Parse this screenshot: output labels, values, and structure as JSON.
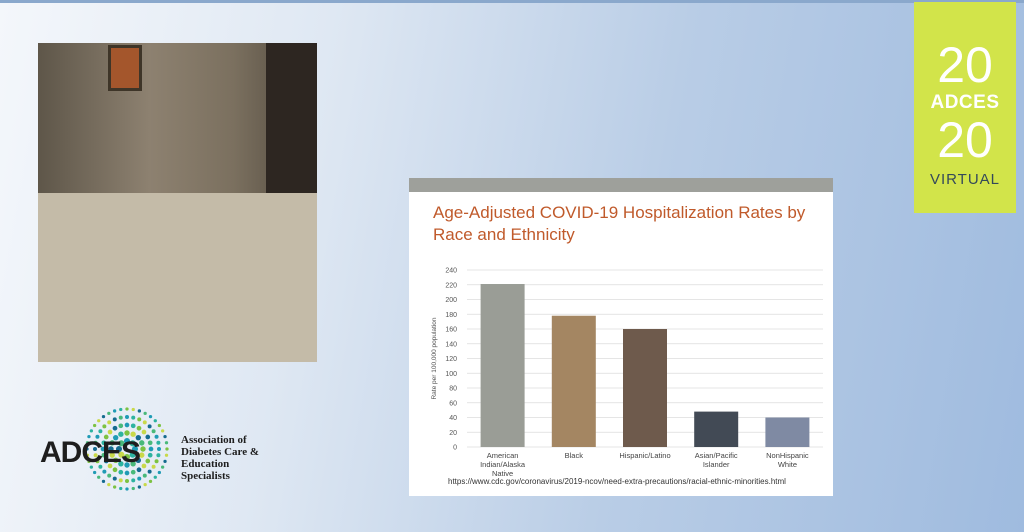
{
  "badge": {
    "top_number": "20",
    "org": "ADCES",
    "bottom_number": "20",
    "subtitle": "VIRTUAL"
  },
  "logo": {
    "wordmark": "ADCES",
    "org_line1": "Association of",
    "org_line2": "Diabetes Care & Education",
    "org_line3": "Specialists"
  },
  "slide": {
    "title": "Age-Adjusted COVID-19 Hospitalization Rates by Race and Ethnicity",
    "source": "https://www.cdc.gov/coronavirus/2019-ncov/need-extra-precautions/racial-ethnic-minorities.html"
  },
  "chart_data": {
    "type": "bar",
    "title": "Age-Adjusted COVID-19 Hospitalization Rates by Race and Ethnicity",
    "ylabel": "Rate per 100,000 population",
    "xlabel": "",
    "ylim": [
      0,
      240
    ],
    "yticks": [
      0,
      20,
      40,
      60,
      80,
      100,
      120,
      140,
      160,
      180,
      200,
      220,
      240
    ],
    "grid": true,
    "categories": [
      [
        "American",
        "Indian/Alaska",
        "Native"
      ],
      [
        "Black"
      ],
      [
        "Hispanic/Latino"
      ],
      [
        "Asian/Pacific",
        "Islander"
      ],
      [
        "NonHispanic",
        "White"
      ]
    ],
    "values": [
      221,
      178,
      160,
      48,
      40
    ],
    "colors": [
      "#9a9d96",
      "#a48662",
      "#6e5a4c",
      "#424a55",
      "#7f8aa3"
    ]
  }
}
